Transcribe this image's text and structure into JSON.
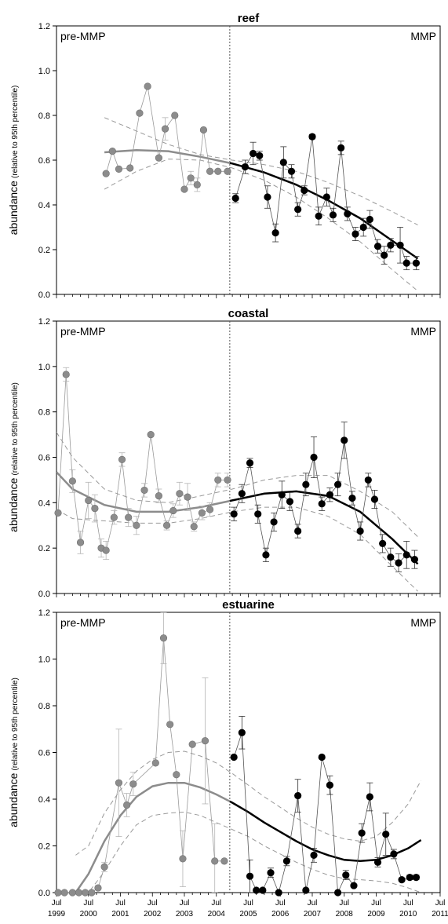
{
  "chart_data": [
    {
      "type": "line",
      "title": "reef",
      "ylabel": "abundance",
      "ylabel_sub": "(relative to 95th percentile)",
      "left_note": "pre-MMP",
      "right_note": "MMP",
      "ylim": [
        0,
        1.2
      ],
      "yticks": [
        "0.0",
        "0.2",
        "0.4",
        "0.6",
        "0.8",
        "1.0",
        "1.2"
      ],
      "xlim": [
        1999.5,
        2011.5
      ],
      "divider_x": 2004.92,
      "series": [
        {
          "period": "pre-MMP",
          "color": "#8c8c8c",
          "x": [
            2001.05,
            2001.25,
            2001.45,
            2001.8,
            2002.1,
            2002.35,
            2002.7,
            2002.9,
            2003.2,
            2003.5,
            2003.7,
            2003.9,
            2004.1,
            2004.3,
            2004.55,
            2004.85
          ],
          "y": [
            0.54,
            0.64,
            0.56,
            0.565,
            0.81,
            0.93,
            0.61,
            0.74,
            0.8,
            0.47,
            0.52,
            0.49,
            0.735,
            0.55,
            0.55,
            0.55
          ],
          "err": [
            0,
            0,
            0,
            0,
            0,
            0,
            0,
            0.05,
            0,
            0,
            0.03,
            0.03,
            0,
            0,
            0,
            0
          ]
        },
        {
          "period": "MMP",
          "color": "#000000",
          "x": [
            2005.1,
            2005.4,
            2005.65,
            2005.85,
            2006.1,
            2006.35,
            2006.6,
            2006.85,
            2007.05,
            2007.25,
            2007.5,
            2007.7,
            2007.95,
            2008.15,
            2008.4,
            2008.6,
            2008.85,
            2009.1,
            2009.3,
            2009.55,
            2009.75,
            2009.95,
            2010.25,
            2010.45,
            2010.75
          ],
          "y": [
            0.43,
            0.57,
            0.63,
            0.62,
            0.435,
            0.275,
            0.59,
            0.55,
            0.38,
            0.465,
            0.705,
            0.35,
            0.435,
            0.355,
            0.655,
            0.36,
            0.27,
            0.3,
            0.335,
            0.215,
            0.175,
            0.22,
            0.22,
            0.14,
            0.14
          ],
          "err": [
            0.02,
            0.03,
            0.05,
            0.02,
            0.05,
            0.04,
            0.07,
            0.03,
            0.03,
            0.02,
            0.01,
            0.04,
            0.04,
            0.03,
            0.03,
            0.03,
            0.03,
            0.04,
            0.04,
            0.03,
            0.04,
            0.03,
            0.08,
            0.03,
            0.03
          ]
        }
      ],
      "trend_x": [
        2001,
        2002,
        2003,
        2004,
        2005,
        2006,
        2007,
        2008,
        2009,
        2010,
        2010.8
      ],
      "trend_y": [
        0.635,
        0.645,
        0.64,
        0.615,
        0.585,
        0.545,
        0.49,
        0.42,
        0.34,
        0.24,
        0.16
      ],
      "band_upper": [
        0.79,
        0.73,
        0.67,
        0.625,
        0.6,
        0.58,
        0.55,
        0.5,
        0.44,
        0.37,
        0.31
      ],
      "band_lower": [
        0.47,
        0.55,
        0.605,
        0.6,
        0.565,
        0.51,
        0.435,
        0.34,
        0.235,
        0.11,
        0.015
      ]
    },
    {
      "type": "line",
      "title": "coastal",
      "ylabel": "abundance",
      "ylabel_sub": "(relative to 95th percentile)",
      "left_note": "pre-MMP",
      "right_note": "MMP",
      "ylim": [
        0,
        1.2
      ],
      "yticks": [
        "0.0",
        "0.2",
        "0.4",
        "0.6",
        "0.8",
        "1.0",
        "1.2"
      ],
      "xlim": [
        1999.5,
        2011.5
      ],
      "divider_x": 2004.92,
      "series": [
        {
          "period": "pre-MMP",
          "color": "#8c8c8c",
          "x": [
            1999.55,
            1999.8,
            2000.0,
            2000.25,
            2000.5,
            2000.7,
            2000.9,
            2001.05,
            2001.3,
            2001.55,
            2001.75,
            2002.0,
            2002.25,
            2002.45,
            2002.7,
            2002.95,
            2003.15,
            2003.35,
            2003.6,
            2003.8,
            2004.05,
            2004.3,
            2004.55,
            2004.85
          ],
          "y": [
            0.355,
            0.965,
            0.495,
            0.225,
            0.41,
            0.375,
            0.2,
            0.19,
            0.335,
            0.59,
            0.335,
            0.3,
            0.455,
            0.7,
            0.43,
            0.3,
            0.365,
            0.44,
            0.425,
            0.295,
            0.355,
            0.37,
            0.5,
            0.5
          ],
          "err": [
            0,
            0.03,
            0.05,
            0.05,
            0.08,
            0.06,
            0.04,
            0.04,
            0.03,
            0.03,
            0.04,
            0.04,
            0.03,
            0.0,
            0.03,
            0.02,
            0.03,
            0.05,
            0.06,
            0.02,
            0.03,
            0.03,
            0.03,
            0.03
          ]
        },
        {
          "period": "MMP",
          "color": "#000000",
          "x": [
            2005.05,
            2005.3,
            2005.55,
            2005.8,
            2006.05,
            2006.3,
            2006.55,
            2006.8,
            2007.05,
            2007.3,
            2007.55,
            2007.8,
            2008.05,
            2008.3,
            2008.5,
            2008.75,
            2009.0,
            2009.25,
            2009.45,
            2009.7,
            2009.95,
            2010.2,
            2010.45,
            2010.7
          ],
          "y": [
            0.35,
            0.44,
            0.575,
            0.35,
            0.17,
            0.315,
            0.435,
            0.405,
            0.275,
            0.48,
            0.6,
            0.395,
            0.435,
            0.48,
            0.675,
            0.42,
            0.275,
            0.5,
            0.415,
            0.22,
            0.16,
            0.135,
            0.17,
            0.15
          ],
          "err": [
            0.03,
            0.04,
            0.02,
            0.04,
            0.03,
            0.04,
            0.06,
            0.04,
            0.03,
            0.05,
            0.09,
            0.03,
            0.03,
            0.05,
            0.08,
            0.03,
            0.04,
            0.03,
            0.04,
            0.04,
            0.04,
            0.04,
            0.06,
            0.04
          ]
        }
      ],
      "trend_x": [
        1999.5,
        2000,
        2001,
        2002,
        2003,
        2004,
        2005,
        2006,
        2007,
        2008,
        2009,
        2010,
        2010.8
      ],
      "trend_y": [
        0.535,
        0.46,
        0.39,
        0.36,
        0.36,
        0.38,
        0.41,
        0.44,
        0.45,
        0.43,
        0.36,
        0.24,
        0.13
      ],
      "band_upper": [
        0.71,
        0.6,
        0.46,
        0.41,
        0.4,
        0.43,
        0.46,
        0.5,
        0.52,
        0.52,
        0.45,
        0.36,
        0.25
      ],
      "band_lower": [
        0.37,
        0.33,
        0.32,
        0.31,
        0.31,
        0.33,
        0.36,
        0.38,
        0.38,
        0.34,
        0.26,
        0.12,
        0.01
      ]
    },
    {
      "type": "line",
      "title": "estuarine",
      "ylabel": "abundance",
      "ylabel_sub": "(relative to 95th percentile)",
      "left_note": "pre-MMP",
      "right_note": "MMP",
      "ylim": [
        0,
        1.2
      ],
      "yticks": [
        "0.0",
        "0.2",
        "0.4",
        "0.6",
        "0.8",
        "1.0",
        "1.2"
      ],
      "xlim": [
        1999.5,
        2011.5
      ],
      "divider_x": 2004.92,
      "xticks_top": [
        "Jul",
        "Jul",
        "Jul",
        "Jul",
        "Jul",
        "Jul",
        "Jul",
        "Jul",
        "Jul",
        "Jul",
        "Jul",
        "Jul",
        "Jul"
      ],
      "xticks_bottom": [
        "1999",
        "2000",
        "2001",
        "2002",
        "2003",
        "2004",
        "2005",
        "2006",
        "2007",
        "2008",
        "2009",
        "2010",
        "2011"
      ],
      "series": [
        {
          "period": "pre-MMP",
          "color": "#8c8c8c",
          "x": [
            1999.55,
            1999.75,
            2000.0,
            2000.2,
            2000.4,
            2000.6,
            2000.8,
            2001.0,
            2001.45,
            2001.7,
            2001.9,
            2002.6,
            2002.85,
            2003.05,
            2003.25,
            2003.45,
            2003.75,
            2004.15,
            2004.45,
            2004.75
          ],
          "y": [
            0,
            0,
            0,
            0,
            0,
            0,
            0.02,
            0.11,
            0.47,
            0.375,
            0.465,
            0.555,
            1.09,
            0.72,
            0.505,
            0.145,
            0.635,
            0.65,
            0.135,
            0.135
          ],
          "err": [
            0,
            0,
            0,
            0,
            0,
            0,
            0,
            0.02,
            0.23,
            0.05,
            0.05,
            0,
            0.11,
            0,
            0,
            0.12,
            0,
            0.27,
            0.16,
            0
          ]
        },
        {
          "period": "MMP",
          "color": "#000000",
          "x": [
            2005.05,
            2005.3,
            2005.55,
            2005.75,
            2005.95,
            2006.2,
            2006.45,
            2006.7,
            2007.05,
            2007.3,
            2007.55,
            2007.8,
            2008.05,
            2008.3,
            2008.55,
            2008.8,
            2009.05,
            2009.3,
            2009.55,
            2009.8,
            2010.05,
            2010.3,
            2010.55,
            2010.75
          ],
          "y": [
            0.58,
            0.685,
            0.07,
            0.01,
            0.01,
            0.085,
            0.0,
            0.135,
            0.415,
            0.01,
            0.16,
            0.58,
            0.46,
            0.0,
            0.075,
            0.03,
            0.255,
            0.41,
            0.13,
            0.25,
            0.165,
            0.055,
            0.065,
            0.065
          ],
          "err": [
            0,
            0.07,
            0.07,
            0,
            0,
            0.02,
            0,
            0.02,
            0.07,
            0,
            0.03,
            0,
            0.04,
            0,
            0.02,
            0,
            0.04,
            0.06,
            0.02,
            0.09,
            0.02,
            0,
            0.01,
            0.01
          ]
        }
      ],
      "trend_x": [
        2000.1,
        2000.5,
        2001,
        2001.5,
        2002,
        2002.5,
        2003,
        2003.5,
        2004,
        2004.5,
        2005,
        2005.5,
        2006,
        2006.5,
        2007,
        2007.5,
        2008,
        2008.5,
        2009,
        2009.5,
        2010,
        2010.5,
        2010.9
      ],
      "trend_y": [
        0.0,
        0.08,
        0.22,
        0.33,
        0.41,
        0.455,
        0.47,
        0.47,
        0.45,
        0.42,
        0.385,
        0.345,
        0.3,
        0.26,
        0.22,
        0.185,
        0.16,
        0.14,
        0.135,
        0.14,
        0.16,
        0.19,
        0.225
      ],
      "band_upper": [
        0.16,
        0.2,
        0.34,
        0.44,
        0.52,
        0.57,
        0.6,
        0.605,
        0.585,
        0.555,
        0.51,
        0.46,
        0.41,
        0.365,
        0.32,
        0.28,
        0.25,
        0.23,
        0.22,
        0.24,
        0.3,
        0.38,
        0.48
      ],
      "band_lower": [
        0.0,
        0.0,
        0.09,
        0.2,
        0.29,
        0.33,
        0.34,
        0.345,
        0.33,
        0.3,
        0.27,
        0.24,
        0.2,
        0.165,
        0.13,
        0.1,
        0.075,
        0.06,
        0.055,
        0.05,
        0.04,
        0.02,
        0.0
      ]
    }
  ]
}
